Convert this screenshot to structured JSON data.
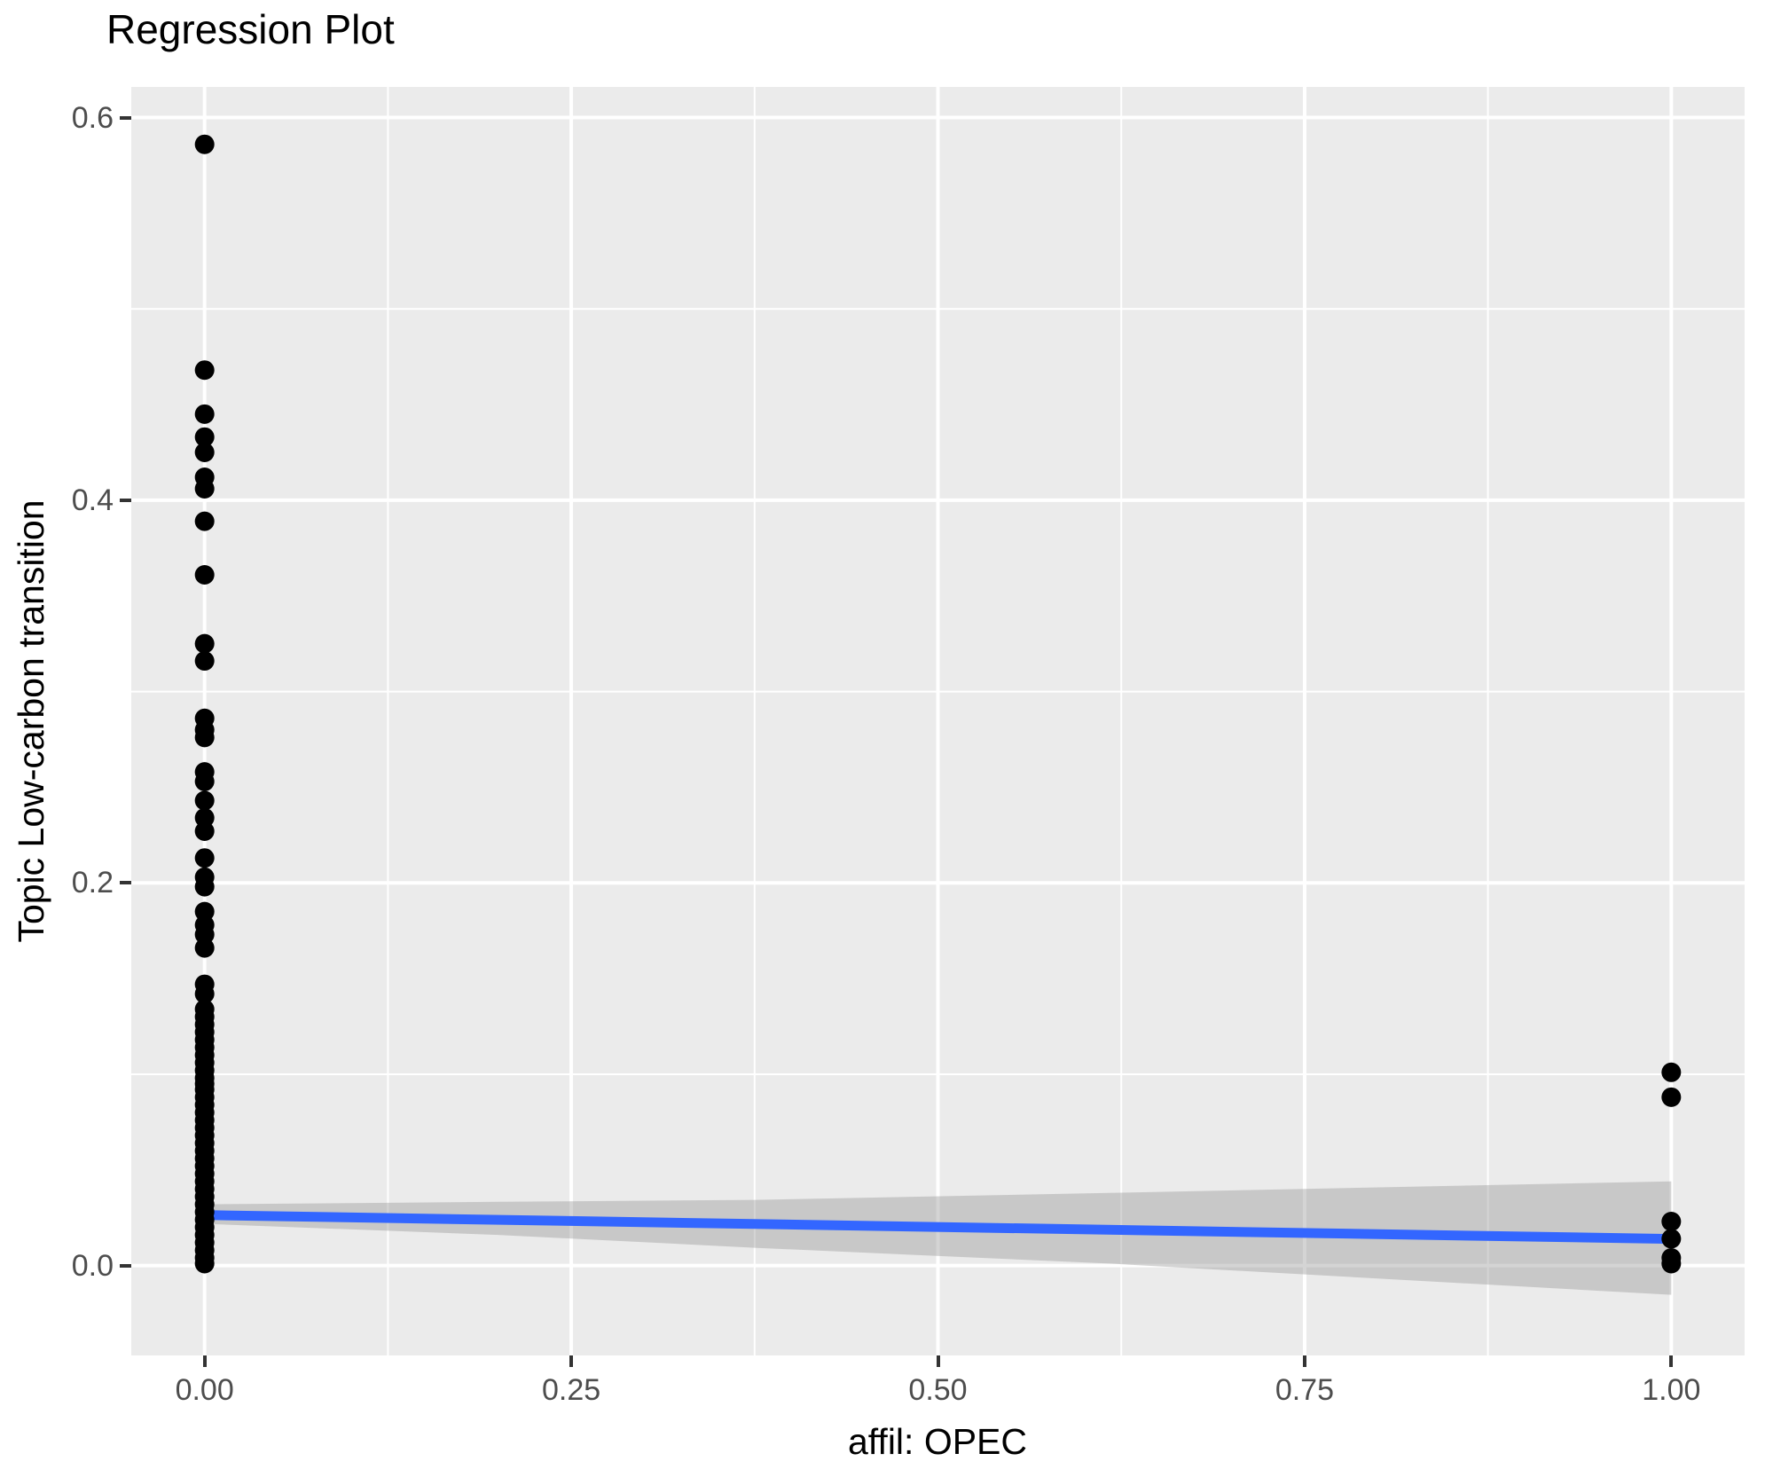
{
  "chart_data": {
    "type": "scatter",
    "title": "Regression Plot",
    "xlabel": "affil: OPEC",
    "ylabel": "Topic Low-carbon transition",
    "xlim": [
      -0.05,
      1.05
    ],
    "ylim": [
      -0.047,
      0.616
    ],
    "grid": true,
    "legend": "none",
    "x_ticks": {
      "values": [
        0.0,
        0.25,
        0.5,
        0.75,
        1.0
      ],
      "labels": [
        "0.00",
        "0.25",
        "0.50",
        "0.75",
        "1.00"
      ]
    },
    "y_ticks": {
      "values": [
        0.0,
        0.2,
        0.4,
        0.6
      ],
      "labels": [
        "0.0",
        "0.2",
        "0.4",
        "0.6"
      ]
    },
    "x_minor_gridlines": [
      0.125,
      0.375,
      0.625,
      0.875
    ],
    "y_minor_gridlines": [
      0.1,
      0.3,
      0.5
    ],
    "colors": {
      "panel_background": "#EBEBEB",
      "gridline": "#FFFFFF",
      "point": "#000000",
      "fit_line": "#3366FF",
      "ci_band": "#999999",
      "tick_label": "#4D4D4D",
      "tick_mark": "#333333",
      "text": "#000000"
    },
    "series": [
      {
        "name": "observations",
        "type": "points",
        "point_groups": [
          {
            "x": 0.0,
            "y_values": [
              0.586,
              0.468,
              0.445,
              0.433,
              0.425,
              0.412,
              0.406,
              0.389,
              0.361,
              0.325,
              0.316,
              0.286,
              0.28,
              0.276,
              0.258,
              0.253,
              0.243,
              0.234,
              0.227,
              0.213,
              0.203,
              0.198,
              0.185,
              0.178,
              0.173,
              0.166,
              0.147,
              0.142,
              0.134,
              0.13,
              0.126,
              0.122,
              0.118,
              0.114,
              0.11,
              0.106,
              0.102,
              0.098,
              0.095,
              0.092,
              0.088,
              0.084,
              0.08,
              0.076,
              0.072,
              0.068,
              0.064,
              0.06,
              0.056,
              0.052,
              0.048,
              0.044,
              0.04,
              0.036,
              0.032,
              0.028,
              0.024,
              0.02,
              0.016,
              0.012,
              0.008,
              0.004,
              0.001
            ]
          },
          {
            "x": 1.0,
            "y_values": [
              0.101,
              0.088,
              0.023,
              0.014,
              0.004,
              0.001
            ]
          }
        ]
      },
      {
        "name": "regression_fit",
        "type": "line",
        "x": [
          0.0,
          1.0
        ],
        "y": [
          0.0264,
          0.0139
        ]
      },
      {
        "name": "confidence_band",
        "type": "band",
        "x": [
          0.0,
          0.2,
          0.375,
          0.62,
          1.0
        ],
        "upper": [
          0.032,
          0.0333,
          0.0343,
          0.038,
          0.044
        ],
        "lower": [
          0.0218,
          0.016,
          0.0093,
          0.0009,
          -0.0153
        ]
      }
    ]
  }
}
